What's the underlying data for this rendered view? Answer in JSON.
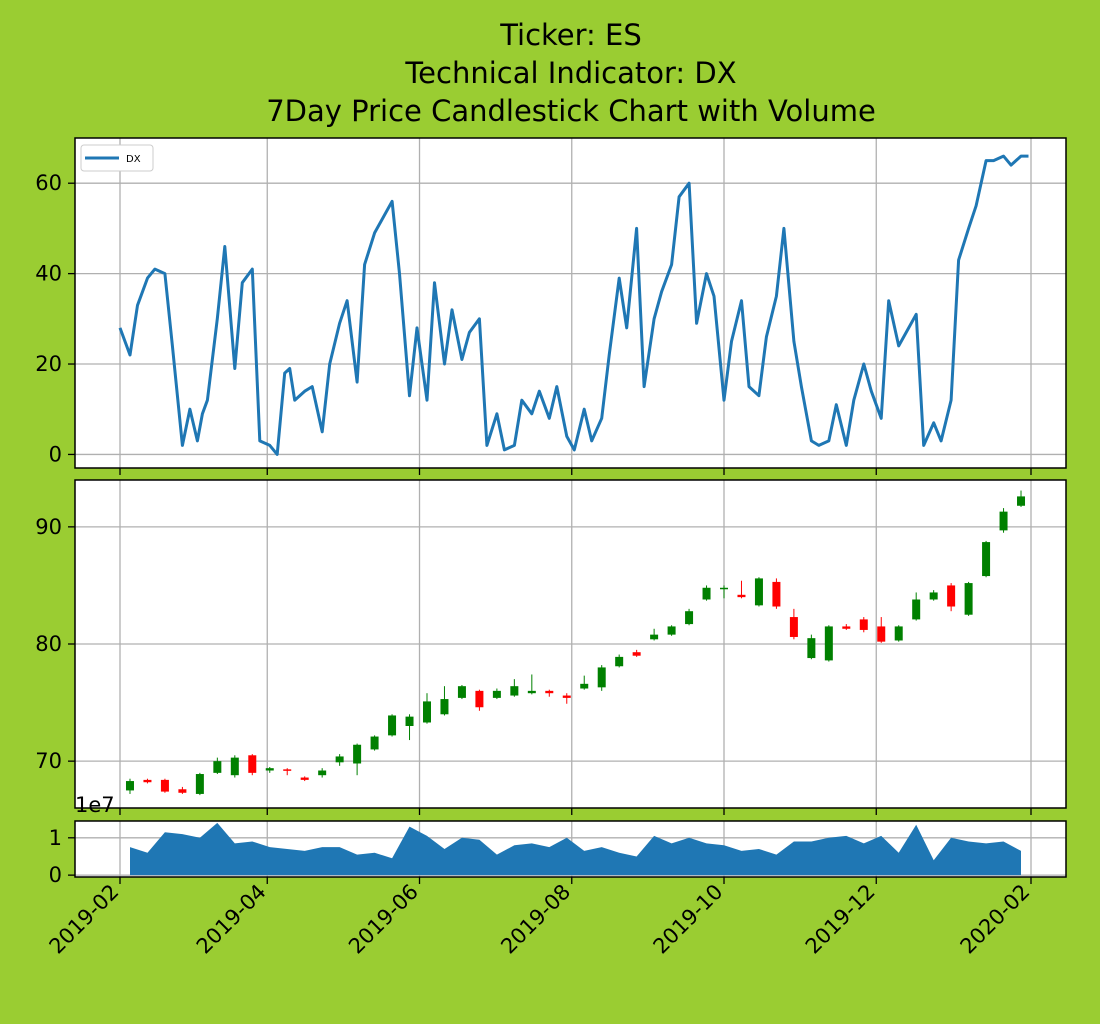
{
  "title_lines": [
    "Ticker: ES",
    "Technical Indicator: DX",
    "7Day Price Candlestick Chart with Volume"
  ],
  "colors": {
    "background": "#9acd32",
    "line": "#1f77b4",
    "up": "#008000",
    "down": "#ff0000",
    "volume": "#1f77b4",
    "grid": "#b0b0b0"
  },
  "chart_data": [
    {
      "type": "line",
      "panel": "indicator",
      "series": [
        {
          "name": "DX",
          "x": [
            "2019-02-01",
            "2019-02-05",
            "2019-02-08",
            "2019-02-12",
            "2019-02-15",
            "2019-02-19",
            "2019-02-22",
            "2019-02-26",
            "2019-03-01",
            "2019-03-04",
            "2019-03-06",
            "2019-03-08",
            "2019-03-12",
            "2019-03-15",
            "2019-03-19",
            "2019-03-22",
            "2019-03-26",
            "2019-03-29",
            "2019-04-02",
            "2019-04-05",
            "2019-04-08",
            "2019-04-10",
            "2019-04-12",
            "2019-04-16",
            "2019-04-19",
            "2019-04-23",
            "2019-04-26",
            "2019-04-30",
            "2019-05-03",
            "2019-05-07",
            "2019-05-10",
            "2019-05-14",
            "2019-05-17",
            "2019-05-21",
            "2019-05-24",
            "2019-05-28",
            "2019-05-31",
            "2019-06-04",
            "2019-06-07",
            "2019-06-11",
            "2019-06-14",
            "2019-06-18",
            "2019-06-21",
            "2019-06-25",
            "2019-06-28",
            "2019-07-02",
            "2019-07-05",
            "2019-07-09",
            "2019-07-12",
            "2019-07-16",
            "2019-07-19",
            "2019-07-23",
            "2019-07-26",
            "2019-07-30",
            "2019-08-02",
            "2019-08-06",
            "2019-08-09",
            "2019-08-13",
            "2019-08-16",
            "2019-08-20",
            "2019-08-23",
            "2019-08-27",
            "2019-08-30",
            "2019-09-03",
            "2019-09-06",
            "2019-09-10",
            "2019-09-13",
            "2019-09-17",
            "2019-09-20",
            "2019-09-24",
            "2019-09-27",
            "2019-10-01",
            "2019-10-04",
            "2019-10-08",
            "2019-10-11",
            "2019-10-15",
            "2019-10-18",
            "2019-10-22",
            "2019-10-25",
            "2019-10-29",
            "2019-11-01",
            "2019-11-05",
            "2019-11-08",
            "2019-11-12",
            "2019-11-15",
            "2019-11-19",
            "2019-11-22",
            "2019-11-26",
            "2019-11-29",
            "2019-12-03",
            "2019-12-06",
            "2019-12-10",
            "2019-12-13",
            "2019-12-17",
            "2019-12-20",
            "2019-12-24",
            "2019-12-27",
            "2019-12-31",
            "2020-01-03",
            "2020-01-07",
            "2020-01-10",
            "2020-01-14",
            "2020-01-17",
            "2020-01-21",
            "2020-01-24",
            "2020-01-28",
            "2020-01-31"
          ],
          "values": [
            28,
            22,
            33,
            39,
            41,
            40,
            24,
            2,
            10,
            3,
            9,
            12,
            30,
            46,
            19,
            38,
            41,
            3,
            2,
            0,
            18,
            19,
            12,
            14,
            15,
            5,
            20,
            29,
            34,
            16,
            42,
            49,
            52,
            56,
            40,
            13,
            28,
            12,
            38,
            20,
            32,
            21,
            27,
            30,
            2,
            9,
            1,
            2,
            12,
            9,
            14,
            8,
            15,
            4,
            1,
            10,
            3,
            8,
            22,
            39,
            28,
            50,
            15,
            30,
            36,
            42,
            57,
            60,
            29,
            40,
            35,
            12,
            25,
            34,
            15,
            13,
            26,
            35,
            50,
            25,
            15,
            3,
            2,
            3,
            11,
            2,
            12,
            20,
            14,
            8,
            34,
            24,
            27,
            31,
            2,
            7,
            3,
            12,
            43,
            50,
            55,
            65,
            65,
            66,
            64,
            66,
            66
          ]
        }
      ],
      "ylim": [
        -3,
        70
      ],
      "yticks": [
        0,
        20,
        40,
        60
      ],
      "legend": "upper-left",
      "grid": true
    },
    {
      "type": "candlestick",
      "panel": "price",
      "x": [
        "2019-02-05",
        "2019-02-12",
        "2019-02-19",
        "2019-02-26",
        "2019-03-05",
        "2019-03-12",
        "2019-03-19",
        "2019-03-26",
        "2019-04-02",
        "2019-04-09",
        "2019-04-16",
        "2019-04-23",
        "2019-04-30",
        "2019-05-07",
        "2019-05-14",
        "2019-05-21",
        "2019-05-28",
        "2019-06-04",
        "2019-06-11",
        "2019-06-18",
        "2019-06-25",
        "2019-07-02",
        "2019-07-09",
        "2019-07-16",
        "2019-07-23",
        "2019-07-30",
        "2019-08-06",
        "2019-08-13",
        "2019-08-20",
        "2019-08-27",
        "2019-09-03",
        "2019-09-10",
        "2019-09-17",
        "2019-09-24",
        "2019-10-01",
        "2019-10-08",
        "2019-10-15",
        "2019-10-22",
        "2019-10-29",
        "2019-11-05",
        "2019-11-12",
        "2019-11-19",
        "2019-11-26",
        "2019-12-03",
        "2019-12-10",
        "2019-12-17",
        "2019-12-24",
        "2019-12-31",
        "2020-01-07",
        "2020-01-14",
        "2020-01-21",
        "2020-01-28"
      ],
      "open": [
        67.5,
        68.4,
        68.4,
        67.6,
        67.2,
        69.0,
        68.8,
        70.5,
        69.2,
        69.3,
        68.6,
        68.8,
        69.9,
        69.8,
        71.0,
        72.2,
        73.0,
        73.3,
        74.0,
        75.4,
        76.0,
        75.4,
        75.6,
        75.8,
        76.0,
        75.6,
        76.2,
        76.3,
        78.1,
        79.3,
        80.4,
        80.8,
        81.7,
        83.8,
        84.7,
        84.2,
        83.3,
        85.3,
        82.3,
        78.8,
        78.6,
        81.5,
        82.1,
        81.5,
        80.3,
        82.1,
        83.8,
        85.0,
        82.5,
        85.8,
        89.7,
        91.8
      ],
      "close": [
        68.3,
        68.2,
        67.4,
        67.3,
        68.9,
        70.0,
        70.3,
        69.0,
        69.4,
        69.2,
        68.4,
        69.2,
        70.4,
        71.4,
        72.1,
        73.9,
        73.8,
        75.1,
        75.3,
        76.4,
        74.6,
        76.0,
        76.4,
        76.0,
        75.8,
        75.4,
        76.6,
        78.0,
        78.9,
        79.0,
        80.8,
        81.5,
        82.8,
        84.8,
        84.8,
        84.0,
        85.6,
        83.2,
        80.6,
        80.5,
        81.5,
        81.3,
        81.2,
        80.2,
        81.5,
        83.8,
        84.4,
        83.2,
        85.2,
        88.7,
        91.3,
        92.6
      ],
      "high": [
        68.5,
        68.5,
        68.5,
        67.8,
        69.0,
        70.3,
        70.5,
        70.6,
        69.5,
        69.4,
        68.7,
        69.4,
        70.6,
        71.5,
        72.2,
        74.0,
        74.0,
        75.8,
        76.4,
        76.5,
        76.1,
        76.2,
        77.0,
        77.4,
        76.1,
        75.8,
        77.3,
        78.2,
        79.1,
        79.5,
        81.3,
        81.6,
        83.0,
        85.0,
        85.0,
        85.4,
        85.7,
        85.6,
        83.0,
        80.8,
        81.6,
        81.7,
        82.3,
        82.3,
        81.6,
        84.4,
        84.6,
        85.2,
        85.3,
        88.8,
        91.6,
        93.1
      ],
      "low": [
        67.2,
        68.1,
        67.3,
        67.2,
        67.1,
        68.9,
        68.6,
        68.8,
        69.0,
        68.8,
        68.3,
        68.6,
        69.6,
        68.8,
        70.9,
        72.1,
        71.8,
        73.2,
        73.9,
        75.3,
        74.3,
        75.3,
        75.5,
        75.7,
        75.5,
        74.9,
        76.1,
        76.0,
        78.0,
        78.9,
        80.3,
        80.7,
        81.6,
        83.7,
        83.9,
        83.9,
        83.2,
        83.0,
        80.4,
        78.7,
        78.5,
        81.2,
        81.0,
        80.1,
        80.2,
        82.0,
        83.7,
        82.8,
        82.4,
        85.7,
        89.5,
        91.7
      ],
      "ylim": [
        66,
        94
      ],
      "yticks": [
        70,
        80,
        90
      ],
      "grid": true
    },
    {
      "type": "area",
      "panel": "volume",
      "x": [
        "2019-02-05",
        "2019-02-12",
        "2019-02-19",
        "2019-02-26",
        "2019-03-05",
        "2019-03-12",
        "2019-03-19",
        "2019-03-26",
        "2019-04-02",
        "2019-04-09",
        "2019-04-16",
        "2019-04-23",
        "2019-04-30",
        "2019-05-07",
        "2019-05-14",
        "2019-05-21",
        "2019-05-28",
        "2019-06-04",
        "2019-06-11",
        "2019-06-18",
        "2019-06-25",
        "2019-07-02",
        "2019-07-09",
        "2019-07-16",
        "2019-07-23",
        "2019-07-30",
        "2019-08-06",
        "2019-08-13",
        "2019-08-20",
        "2019-08-27",
        "2019-09-03",
        "2019-09-10",
        "2019-09-17",
        "2019-09-24",
        "2019-10-01",
        "2019-10-08",
        "2019-10-15",
        "2019-10-22",
        "2019-10-29",
        "2019-11-05",
        "2019-11-12",
        "2019-11-19",
        "2019-11-26",
        "2019-12-03",
        "2019-12-10",
        "2019-12-17",
        "2019-12-24",
        "2019-12-31",
        "2020-01-07",
        "2020-01-14",
        "2020-01-21",
        "2020-01-28"
      ],
      "values": [
        0.75,
        0.6,
        1.15,
        1.1,
        1.0,
        1.4,
        0.85,
        0.9,
        0.75,
        0.7,
        0.65,
        0.75,
        0.75,
        0.55,
        0.6,
        0.45,
        1.3,
        1.05,
        0.7,
        1.0,
        0.95,
        0.55,
        0.8,
        0.85,
        0.75,
        1.0,
        0.65,
        0.75,
        0.6,
        0.5,
        1.05,
        0.85,
        1.0,
        0.85,
        0.8,
        0.65,
        0.7,
        0.55,
        0.9,
        0.9,
        1.0,
        1.05,
        0.85,
        1.05,
        0.6,
        1.35,
        0.4,
        1.0,
        0.9,
        0.85,
        0.9,
        0.65
      ],
      "offset_label": "1e7",
      "ylim": [
        -0.05,
        1.45
      ],
      "yticks": [
        0,
        1
      ],
      "grid": true
    }
  ],
  "x_axis": {
    "ticks": [
      "2019-02",
      "2019-04",
      "2019-06",
      "2019-08",
      "2019-10",
      "2019-12",
      "2020-02"
    ]
  }
}
